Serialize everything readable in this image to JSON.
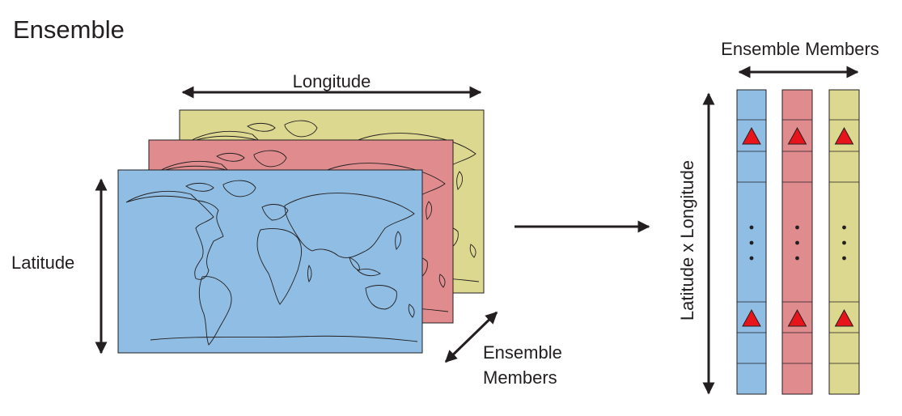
{
  "title": "Ensemble",
  "labels": {
    "longitude": "Longitude",
    "latitude": "Latitude",
    "ensemble_members_line1": "Ensemble",
    "ensemble_members_line2": "Members",
    "ensemble_members_top": "Ensemble Members",
    "lat_x_lon": "Latitude x Longitude"
  },
  "colors": {
    "member_blue": "#8fbde3",
    "member_red": "#e08c8e",
    "member_yellow": "#dcd890",
    "marker": "#e8141b",
    "outline": "#231f20"
  },
  "icons": {
    "marker": "red-triangle-icon",
    "ellipsis": "vertical-ellipsis-icon",
    "arrow": "double-arrow-icon"
  }
}
